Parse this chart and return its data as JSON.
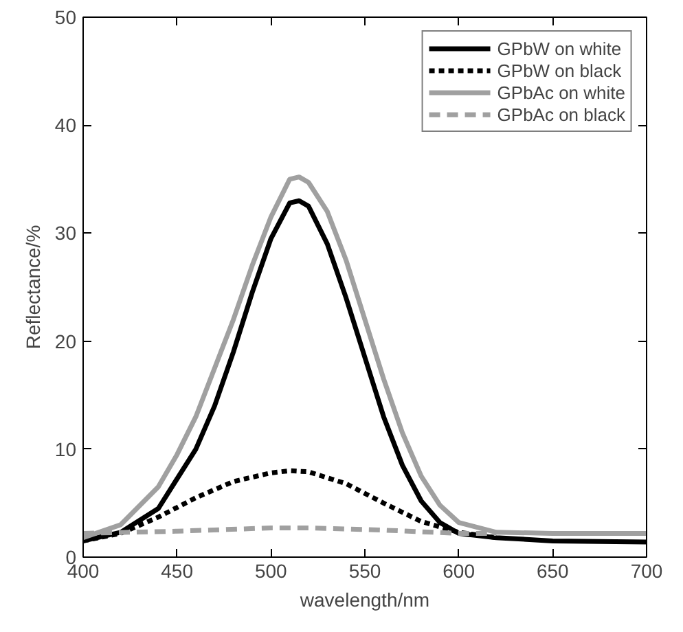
{
  "chart_data": {
    "type": "line",
    "xlabel": "wavelength/nm",
    "ylabel": "Reflectance/%",
    "xlim": [
      400,
      700
    ],
    "ylim": [
      0,
      50
    ],
    "xticks": [
      400,
      450,
      500,
      550,
      600,
      650,
      700
    ],
    "yticks": [
      0,
      10,
      20,
      30,
      40,
      50
    ],
    "grid": false,
    "legend": "top right",
    "marker": "none",
    "series": [
      {
        "name": "GPbW on white",
        "color": "#000000",
        "line_style": "solid",
        "x": [
          400,
          420,
          440,
          460,
          470,
          480,
          490,
          500,
          510,
          515,
          520,
          530,
          540,
          550,
          560,
          570,
          580,
          590,
          600,
          620,
          650,
          700
        ],
        "values": [
          1.5,
          2.3,
          4.5,
          10,
          14,
          19,
          24.5,
          29.5,
          32.8,
          33,
          32.5,
          29,
          24,
          18.5,
          13,
          8.5,
          5.2,
          3.2,
          2.2,
          1.8,
          1.5,
          1.4
        ]
      },
      {
        "name": "GPbW on black",
        "color": "#000000",
        "line_style": "dotted",
        "x": [
          400,
          420,
          440,
          460,
          480,
          500,
          510,
          520,
          540,
          560,
          580,
          600,
          620
        ],
        "values": [
          1.5,
          2.2,
          3.7,
          5.5,
          7,
          7.8,
          8,
          7.9,
          6.8,
          5,
          3.3,
          2.3,
          1.8
        ]
      },
      {
        "name": "GPbAc on white",
        "color": "#a0a0a0",
        "line_style": "solid",
        "x": [
          400,
          420,
          440,
          450,
          460,
          470,
          480,
          490,
          500,
          510,
          515,
          520,
          530,
          540,
          550,
          560,
          570,
          580,
          590,
          600,
          620,
          650,
          700
        ],
        "values": [
          1.8,
          3,
          6.5,
          9.5,
          13,
          17.5,
          22,
          27,
          31.5,
          35,
          35.2,
          34.7,
          32,
          27.5,
          22,
          16.5,
          11.5,
          7.5,
          4.8,
          3.2,
          2.3,
          2.2,
          2.2
        ]
      },
      {
        "name": "GPbAc on black",
        "color": "#a0a0a0",
        "line_style": "dashed",
        "x": [
          400,
          450,
          500,
          520,
          560,
          600,
          620
        ],
        "values": [
          2.2,
          2.4,
          2.7,
          2.7,
          2.5,
          2.2,
          2.2
        ]
      }
    ]
  }
}
